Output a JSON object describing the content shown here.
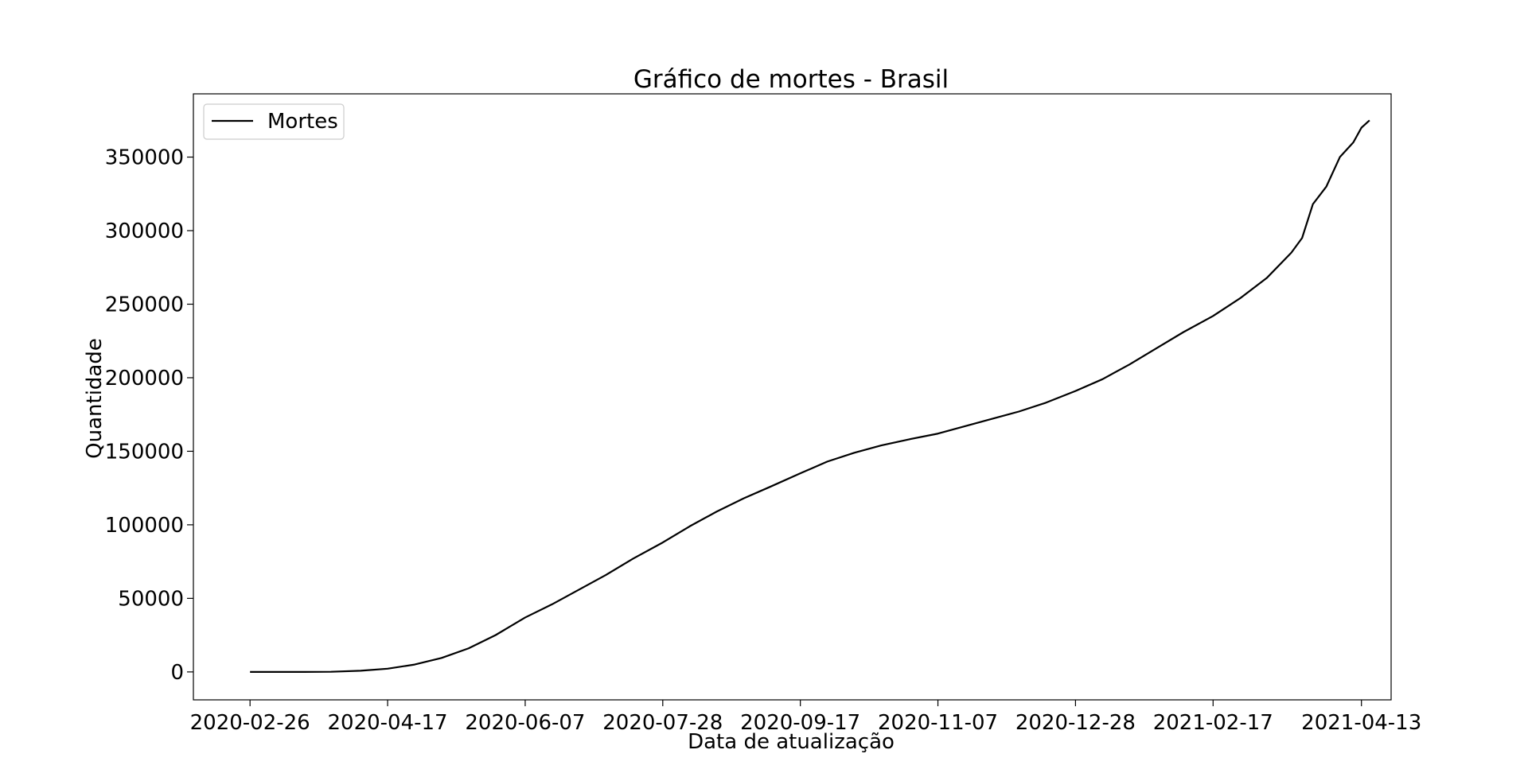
{
  "chart_data": {
    "type": "line",
    "title": "Gráfico de mortes - Brasil",
    "xlabel": "Data de atualização",
    "ylabel": "Quantidade",
    "xlim": [
      "2020-02-05",
      "2021-04-24"
    ],
    "ylim": [
      -19000,
      393000
    ],
    "x_ticks": [
      "2020-02-26",
      "2020-04-17",
      "2020-06-07",
      "2020-07-28",
      "2020-09-17",
      "2020-11-07",
      "2020-12-28",
      "2021-02-17",
      "2021-04-13"
    ],
    "y_ticks": [
      0,
      50000,
      100000,
      150000,
      200000,
      250000,
      300000,
      350000
    ],
    "y_tick_labels": [
      "0",
      "50000",
      "100000",
      "150000",
      "200000",
      "250000",
      "300000",
      "350000"
    ],
    "grid": false,
    "legend_position": "top-left",
    "line_color": "#000000",
    "series": [
      {
        "name": "Mortes",
        "x": [
          "2020-02-26",
          "2020-03-17",
          "2020-03-27",
          "2020-04-07",
          "2020-04-17",
          "2020-04-27",
          "2020-05-07",
          "2020-05-17",
          "2020-05-27",
          "2020-06-07",
          "2020-06-17",
          "2020-06-27",
          "2020-07-07",
          "2020-07-17",
          "2020-07-28",
          "2020-08-07",
          "2020-08-17",
          "2020-08-27",
          "2020-09-06",
          "2020-09-17",
          "2020-09-27",
          "2020-10-07",
          "2020-10-17",
          "2020-10-27",
          "2020-11-07",
          "2020-11-17",
          "2020-11-27",
          "2020-12-07",
          "2020-12-17",
          "2020-12-28",
          "2021-01-07",
          "2021-01-17",
          "2021-01-27",
          "2021-02-06",
          "2021-02-17",
          "2021-02-27",
          "2021-03-09",
          "2021-03-18",
          "2021-03-22",
          "2021-03-26",
          "2021-03-31",
          "2021-04-05",
          "2021-04-10",
          "2021-04-13",
          "2021-04-16"
        ],
        "values": [
          0,
          1,
          100,
          800,
          2200,
          5000,
          9500,
          16000,
          25000,
          37000,
          46000,
          56000,
          66000,
          77000,
          88000,
          99000,
          109000,
          118000,
          126000,
          135000,
          143000,
          149000,
          154000,
          158000,
          162000,
          167000,
          172000,
          177000,
          183000,
          191000,
          199000,
          209000,
          220000,
          231000,
          242000,
          254000,
          268000,
          285000,
          295000,
          318000,
          330000,
          350000,
          360000,
          370000,
          375000
        ]
      }
    ]
  }
}
